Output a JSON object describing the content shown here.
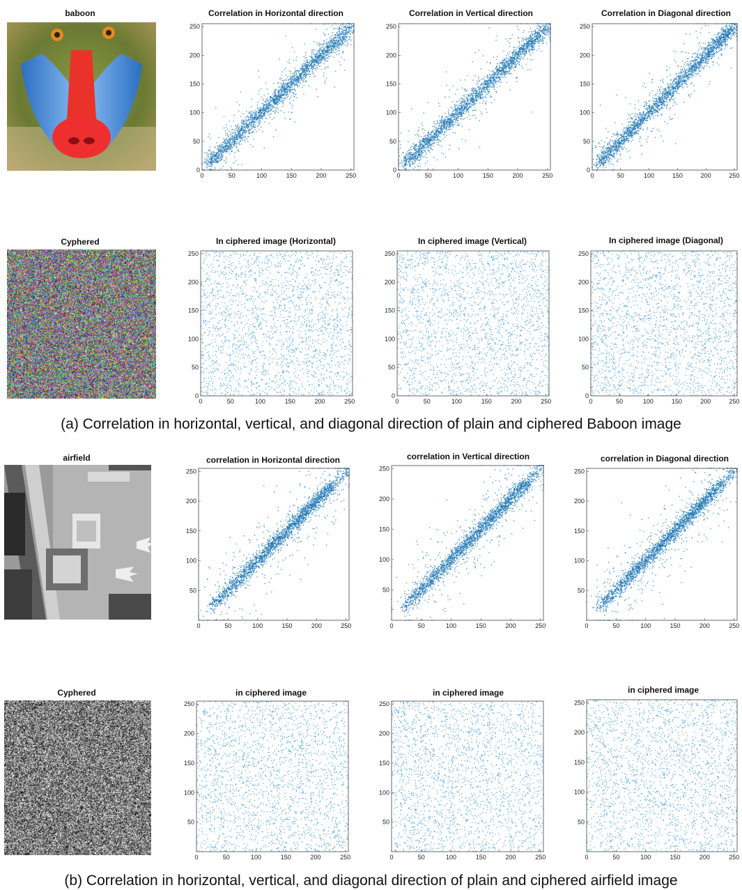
{
  "figure_a": {
    "caption": "(a) Correlation in horizontal, vertical, and diagonal direction of plain and ciphered Baboon image",
    "plain_image_title": "baboon",
    "cipher_image_title": "Cyphered"
  },
  "figure_b": {
    "caption": "(b) Correlation in horizontal, vertical, and diagonal direction of plain and ciphered airfield image",
    "plain_image_title": "airfield",
    "cipher_image_title": "Cyphered"
  },
  "colors": {
    "points_dense": "#1f77b4",
    "points_light": "#5aa9e0",
    "axes": "#444444"
  },
  "chart_data": [
    {
      "id": "a-plain-h",
      "type": "scatter",
      "title": "Correlation in Horizontal direction",
      "xlim": [
        0,
        255
      ],
      "ylim": [
        0,
        255
      ],
      "xticks": [
        "0",
        "50",
        "100",
        "150",
        "200",
        "250"
      ],
      "yticks": [
        "0",
        "50",
        "100",
        "150",
        "200",
        "250"
      ],
      "pattern": "strong positive correlation along y = x",
      "series": [
        {
          "values_summary": "points clustered tightly around y = x, 0–255"
        }
      ]
    },
    {
      "id": "a-plain-v",
      "type": "scatter",
      "title": "Correlation in Vertical direction",
      "xlim": [
        0,
        255
      ],
      "ylim": [
        0,
        255
      ],
      "xticks": [
        "0",
        "50",
        "100",
        "150",
        "200",
        "250"
      ],
      "yticks": [
        "0",
        "50",
        "100",
        "150",
        "200",
        "250"
      ],
      "pattern": "strong positive correlation along y = x",
      "series": [
        {
          "values_summary": "points clustered around y = x, 0–255"
        }
      ]
    },
    {
      "id": "a-plain-d",
      "type": "scatter",
      "title": "Correlation in Diagonal direction",
      "xlim": [
        0,
        255
      ],
      "ylim": [
        0,
        255
      ],
      "xticks": [
        "0",
        "50",
        "100",
        "150",
        "200",
        "250"
      ],
      "yticks": [
        "0",
        "50",
        "100",
        "150",
        "200",
        "250"
      ],
      "pattern": "strong positive correlation along y = x",
      "series": [
        {
          "values_summary": "points clustered around y = x, 0–255"
        }
      ]
    },
    {
      "id": "a-cipher-h",
      "type": "scatter",
      "title": "In ciphered image (Horizontal)",
      "xlim": [
        0,
        255
      ],
      "ylim": [
        0,
        255
      ],
      "xticks": [
        "0",
        "50",
        "100",
        "150",
        "200",
        "250"
      ],
      "yticks": [
        "0",
        "50",
        "100",
        "150",
        "200",
        "250"
      ],
      "pattern": "uniformly distributed, no correlation",
      "series": [
        {
          "values_summary": "points uniformly spread over 0–255 × 0–255"
        }
      ]
    },
    {
      "id": "a-cipher-v",
      "type": "scatter",
      "title": "In ciphered image (Vertical)",
      "xlim": [
        0,
        255
      ],
      "ylim": [
        0,
        255
      ],
      "xticks": [
        "0",
        "50",
        "100",
        "150",
        "200",
        "250"
      ],
      "yticks": [
        "0",
        "50",
        "100",
        "150",
        "200",
        "250"
      ],
      "pattern": "uniformly distributed, no correlation",
      "series": [
        {
          "values_summary": "points uniformly spread over 0–255 × 0–255"
        }
      ]
    },
    {
      "id": "a-cipher-d",
      "type": "scatter",
      "title": "In ciphered image (Diagonal)",
      "xlim": [
        0,
        255
      ],
      "ylim": [
        0,
        255
      ],
      "xticks": [
        "0",
        "50",
        "100",
        "150",
        "200",
        "250"
      ],
      "yticks": [
        "0",
        "50",
        "100",
        "150",
        "200",
        "250"
      ],
      "pattern": "uniformly distributed, no correlation",
      "series": [
        {
          "values_summary": "points uniformly spread over 0–255 × 0–255"
        }
      ]
    },
    {
      "id": "b-plain-h",
      "type": "scatter",
      "title": "correlation in Horizontal direction",
      "xlim": [
        0,
        255
      ],
      "ylim": [
        0,
        255
      ],
      "xticks": [
        "0",
        "50",
        "100",
        "150",
        "200",
        "250"
      ],
      "yticks": [
        "50",
        "100",
        "150",
        "200",
        "250"
      ],
      "pattern": "strong positive correlation, dense band from (20,20) to (250,250)",
      "series": [
        {
          "values_summary": "points along y = x, concentrated 20–220"
        }
      ]
    },
    {
      "id": "b-plain-v",
      "type": "scatter",
      "title": "correlation in Vertical direction",
      "xlim": [
        0,
        255
      ],
      "ylim": [
        0,
        255
      ],
      "xticks": [
        "0",
        "50",
        "100",
        "150",
        "200",
        "250"
      ],
      "yticks": [
        "50",
        "100",
        "150",
        "200",
        "250"
      ],
      "pattern": "strong positive correlation, dense band from (20,20) to (250,250)",
      "series": [
        {
          "values_summary": "points along y = x, concentrated 20–220"
        }
      ]
    },
    {
      "id": "b-plain-d",
      "type": "scatter",
      "title": "correlation in Diagonal direction",
      "xlim": [
        0,
        255
      ],
      "ylim": [
        0,
        255
      ],
      "xticks": [
        "0",
        "50",
        "100",
        "150",
        "200",
        "250"
      ],
      "yticks": [
        "50",
        "100",
        "150",
        "200",
        "250"
      ],
      "pattern": "strong positive correlation, dense band from (20,20) to (250,250)",
      "series": [
        {
          "values_summary": "points along y = x, concentrated 20–220"
        }
      ]
    },
    {
      "id": "b-cipher-h",
      "type": "scatter",
      "title": "in ciphered image",
      "xlim": [
        0,
        255
      ],
      "ylim": [
        0,
        255
      ],
      "xticks": [
        "0",
        "50",
        "100",
        "150",
        "200",
        "250"
      ],
      "yticks": [
        "50",
        "100",
        "150",
        "200",
        "250"
      ],
      "pattern": "uniformly distributed, no correlation",
      "series": [
        {
          "values_summary": "points uniformly spread over 0–255 × 0–255"
        }
      ]
    },
    {
      "id": "b-cipher-v",
      "type": "scatter",
      "title": "in ciphered image",
      "xlim": [
        0,
        255
      ],
      "ylim": [
        0,
        255
      ],
      "xticks": [
        "0",
        "50",
        "100",
        "150",
        "200",
        "250"
      ],
      "yticks": [
        "50",
        "100",
        "150",
        "200",
        "250"
      ],
      "pattern": "uniformly distributed, no correlation",
      "series": [
        {
          "values_summary": "points uniformly spread over 0–255 × 0–255"
        }
      ]
    },
    {
      "id": "b-cipher-d",
      "type": "scatter",
      "title": "in ciphered image",
      "xlim": [
        0,
        255
      ],
      "ylim": [
        0,
        255
      ],
      "xticks": [
        "0",
        "50",
        "100",
        "150",
        "200",
        "250"
      ],
      "yticks": [
        "50",
        "100",
        "150",
        "200",
        "250"
      ],
      "pattern": "uniformly distributed, no correlation",
      "series": [
        {
          "values_summary": "points uniformly spread over 0–255 × 0–255"
        }
      ]
    }
  ]
}
